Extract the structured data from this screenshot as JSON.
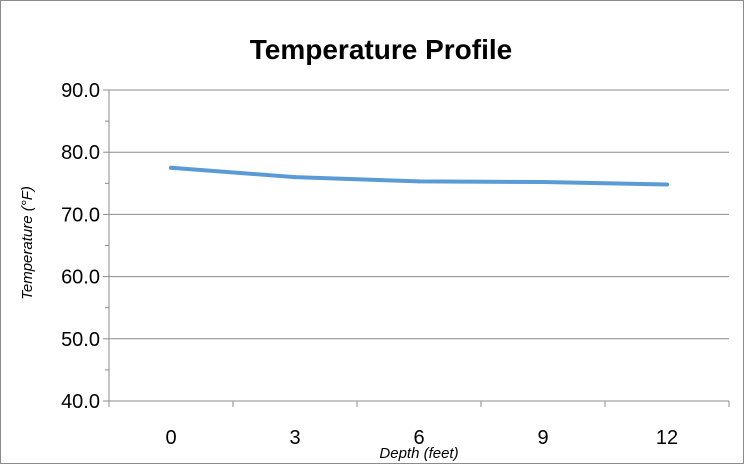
{
  "chart_data": {
    "type": "line",
    "title": "Temperature Profile",
    "xlabel": "Depth (feet)",
    "ylabel": "Temperature (°F)",
    "categories": [
      "0",
      "3",
      "6",
      "9",
      "12"
    ],
    "series": [
      {
        "values": [
          77.5,
          76.0,
          75.3,
          75.2,
          74.8
        ],
        "color": "#5b9bd5"
      }
    ],
    "ylim": [
      40,
      90
    ],
    "yticks": [
      "40.0",
      "50.0",
      "60.0",
      "70.0",
      "80.0",
      "90.0"
    ],
    "grid": true,
    "legend": "none"
  }
}
